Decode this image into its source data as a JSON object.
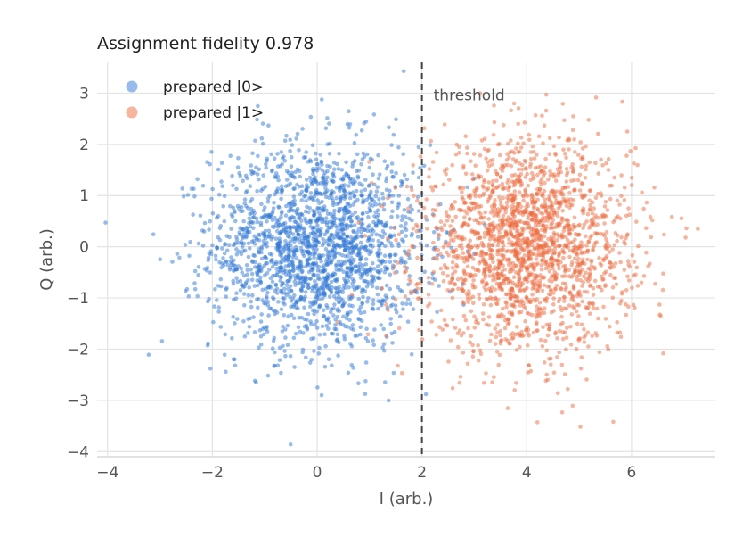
{
  "chart_data": {
    "type": "scatter",
    "title": "Assignment fidelity 0.978",
    "xlabel": "I (arb.)",
    "ylabel": "Q (arb.)",
    "xlim": [
      -4.2,
      7.6
    ],
    "ylim": [
      -4.1,
      3.6
    ],
    "xticks": [
      -4,
      -2,
      0,
      2,
      4,
      6
    ],
    "yticks": [
      -4,
      -3,
      -2,
      -1,
      0,
      1,
      2,
      3
    ],
    "xtick_labels": [
      "−4",
      "−2",
      "0",
      "2",
      "4",
      "6"
    ],
    "ytick_labels": [
      "−4",
      "−3",
      "−2",
      "−1",
      "0",
      "1",
      "2",
      "3"
    ],
    "grid": true,
    "legend_position": "top-left",
    "series": [
      {
        "name": "prepared |0>",
        "color": "#2f78d6",
        "center": [
          0.0,
          0.0
        ],
        "sigma": 1.0,
        "count": 2000
      },
      {
        "name": "prepared |1>",
        "color": "#ee6b3f",
        "center": [
          4.0,
          0.0
        ],
        "sigma": 1.0,
        "count": 2000
      }
    ],
    "threshold": {
      "x": 2,
      "label": "threshold",
      "style": "dashed"
    }
  }
}
